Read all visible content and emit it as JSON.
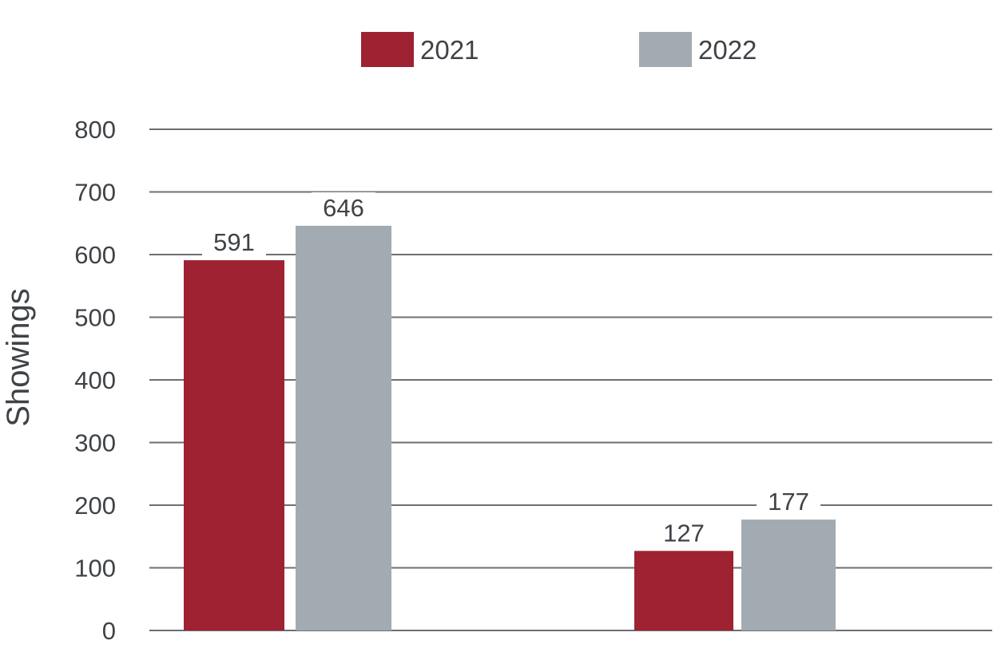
{
  "chart_data": {
    "type": "bar",
    "title": "",
    "xlabel": "",
    "ylabel": "Showings",
    "ylim": [
      0,
      800
    ],
    "yticks": [
      "0",
      "100",
      "200",
      "300",
      "400",
      "500",
      "600",
      "700",
      "800"
    ],
    "categories": [
      "",
      ""
    ],
    "series": [
      {
        "name": "2021",
        "values": [
          591,
          127
        ],
        "color": "#9e2232"
      },
      {
        "name": "2022",
        "values": [
          646,
          177
        ],
        "color": "#a2abb1"
      }
    ],
    "grid": true,
    "legend": "top"
  }
}
